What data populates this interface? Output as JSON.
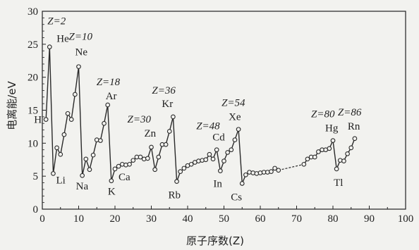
{
  "chart_data": {
    "type": "line",
    "xlabel": "原子序数(Z)",
    "ylabel": "电离能/eV",
    "xlim": [
      0,
      100
    ],
    "ylim": [
      0,
      30
    ],
    "xticks": [
      0,
      10,
      20,
      30,
      40,
      50,
      60,
      70,
      80,
      90,
      100
    ],
    "yticks": [
      0,
      5,
      10,
      15,
      20,
      25,
      30
    ],
    "grid": false,
    "series": [
      {
        "marker": "circle",
        "points": [
          [
            1,
            13.6
          ],
          [
            2,
            24.6
          ],
          [
            3,
            5.4
          ],
          [
            4,
            9.3
          ],
          [
            5,
            8.3
          ],
          [
            6,
            11.3
          ],
          [
            7,
            14.5
          ],
          [
            8,
            13.6
          ],
          [
            9,
            17.4
          ],
          [
            10,
            21.6
          ],
          [
            11,
            5.1
          ],
          [
            12,
            7.6
          ],
          [
            13,
            6.0
          ],
          [
            14,
            8.2
          ],
          [
            15,
            10.5
          ],
          [
            16,
            10.4
          ],
          [
            17,
            13.0
          ],
          [
            18,
            15.8
          ],
          [
            19,
            4.3
          ],
          [
            20,
            6.1
          ],
          [
            21,
            6.5
          ],
          [
            22,
            6.8
          ],
          [
            23,
            6.7
          ],
          [
            24,
            6.8
          ],
          [
            25,
            7.4
          ],
          [
            26,
            7.9
          ],
          [
            27,
            7.9
          ],
          [
            28,
            7.6
          ],
          [
            29,
            7.7
          ],
          [
            30,
            9.4
          ],
          [
            31,
            6.0
          ],
          [
            32,
            7.9
          ],
          [
            33,
            9.8
          ],
          [
            34,
            9.8
          ],
          [
            35,
            11.8
          ],
          [
            36,
            14.0
          ],
          [
            37,
            4.2
          ],
          [
            38,
            5.7
          ],
          [
            39,
            6.2
          ],
          [
            40,
            6.6
          ],
          [
            41,
            6.8
          ],
          [
            42,
            7.1
          ],
          [
            43,
            7.3
          ],
          [
            44,
            7.4
          ],
          [
            45,
            7.5
          ],
          [
            46,
            8.3
          ],
          [
            47,
            7.6
          ],
          [
            48,
            9.0
          ],
          [
            49,
            5.8
          ],
          [
            50,
            7.3
          ],
          [
            51,
            8.6
          ],
          [
            52,
            9.0
          ],
          [
            53,
            10.5
          ],
          [
            54,
            12.1
          ],
          [
            55,
            3.9
          ],
          [
            56,
            5.2
          ],
          [
            57,
            5.6
          ],
          [
            58,
            5.5
          ],
          [
            59,
            5.4
          ],
          [
            60,
            5.5
          ],
          [
            61,
            5.6
          ],
          [
            62,
            5.6
          ],
          [
            63,
            5.7
          ],
          [
            64,
            6.2
          ],
          [
            65,
            5.9
          ],
          [
            72,
            6.8
          ],
          [
            73,
            7.6
          ],
          [
            74,
            7.9
          ],
          [
            75,
            7.9
          ],
          [
            76,
            8.7
          ],
          [
            77,
            9.0
          ],
          [
            78,
            9.0
          ],
          [
            79,
            9.2
          ],
          [
            80,
            10.4
          ],
          [
            81,
            6.1
          ],
          [
            82,
            7.4
          ],
          [
            83,
            7.3
          ],
          [
            84,
            8.4
          ],
          [
            85,
            9.3
          ],
          [
            86,
            10.7
          ]
        ]
      }
    ],
    "annotations": [
      {
        "text": "H",
        "x": 1,
        "y": 13.6
      },
      {
        "text": "He",
        "x": 2,
        "y": 24.6
      },
      {
        "text": "Li",
        "x": 3,
        "y": 5.4
      },
      {
        "text": "Ne",
        "x": 10,
        "y": 21.6
      },
      {
        "text": "Na",
        "x": 11,
        "y": 5.1
      },
      {
        "text": "Ar",
        "x": 18,
        "y": 15.8
      },
      {
        "text": "K",
        "x": 19,
        "y": 4.3
      },
      {
        "text": "Ca",
        "x": 20,
        "y": 6.1
      },
      {
        "text": "Zn",
        "x": 30,
        "y": 9.4
      },
      {
        "text": "Kr",
        "x": 36,
        "y": 14.0
      },
      {
        "text": "Rb",
        "x": 37,
        "y": 4.2
      },
      {
        "text": "Cd",
        "x": 48,
        "y": 9.0
      },
      {
        "text": "In",
        "x": 49,
        "y": 5.8
      },
      {
        "text": "Xe",
        "x": 54,
        "y": 12.1
      },
      {
        "text": "Cs",
        "x": 55,
        "y": 3.9
      },
      {
        "text": "Hg",
        "x": 80,
        "y": 10.4
      },
      {
        "text": "Tl",
        "x": 81,
        "y": 6.1
      },
      {
        "text": "Rn",
        "x": 86,
        "y": 10.7
      },
      {
        "text": "Z=2",
        "x": 2,
        "y": 24.6
      },
      {
        "text": "Z=10",
        "x": 10,
        "y": 21.6
      },
      {
        "text": "Z=18",
        "x": 18,
        "y": 15.8
      },
      {
        "text": "Z=30",
        "x": 30,
        "y": 9.4
      },
      {
        "text": "Z=36",
        "x": 36,
        "y": 14.0
      },
      {
        "text": "Z=48",
        "x": 48,
        "y": 9.0
      },
      {
        "text": "Z=54",
        "x": 54,
        "y": 12.1
      },
      {
        "text": "Z=80",
        "x": 80,
        "y": 10.4
      },
      {
        "text": "Z=86",
        "x": 86,
        "y": 10.7
      }
    ],
    "colors": {
      "background": "#f2f2ef",
      "line": "#2a2a2a",
      "axis": "#222222"
    }
  }
}
